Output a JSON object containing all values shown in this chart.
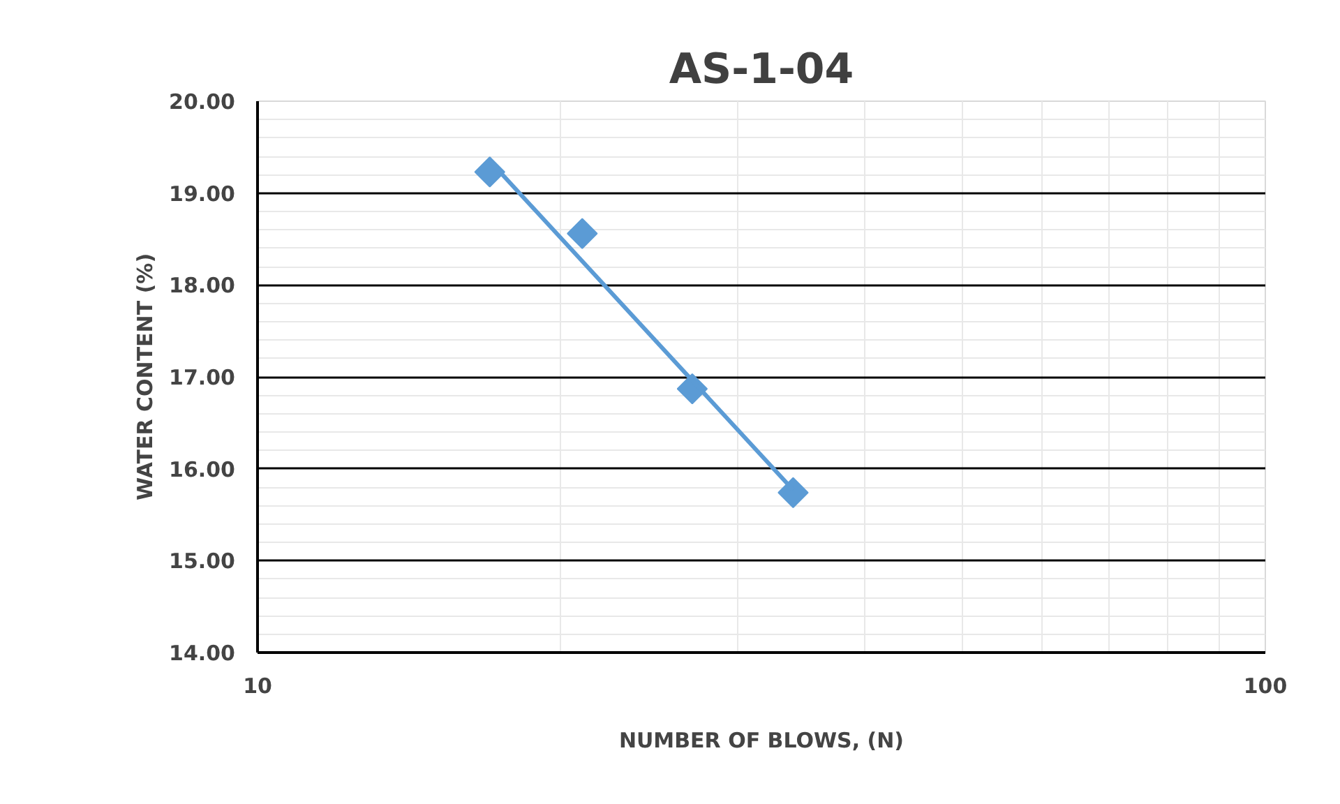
{
  "chart_data": {
    "type": "scatter",
    "title": "AS-1-04",
    "xlabel": "NUMBER OF BLOWS, (N)",
    "ylabel": "WATER CONTENT (%)",
    "log": "x",
    "xlim": [
      10,
      100
    ],
    "xticks": [
      {
        "value": 10,
        "label": "10"
      },
      {
        "value": 100,
        "label": "100"
      }
    ],
    "ylim": [
      14,
      20
    ],
    "yticks": [
      {
        "value": 14,
        "label": "14.00"
      },
      {
        "value": 15,
        "label": "15.00"
      },
      {
        "value": 16,
        "label": "16.00"
      },
      {
        "value": 17,
        "label": "17.00"
      },
      {
        "value": 18,
        "label": "18.00"
      },
      {
        "value": 19,
        "label": "19.00"
      },
      {
        "value": 20,
        "label": "20.00"
      }
    ],
    "grid": true,
    "series": [
      {
        "type": "scatter",
        "x": [
          17,
          21,
          27,
          34
        ],
        "values": [
          19.23,
          18.56,
          16.87,
          15.74
        ],
        "color": "#5b9bd5",
        "marker": "diamond"
      },
      {
        "type": "line",
        "x": [
          17,
          34
        ],
        "values": [
          19.35,
          15.77
        ],
        "color": "#5b9bd5",
        "marker": "none",
        "line_style": "solid"
      }
    ]
  }
}
